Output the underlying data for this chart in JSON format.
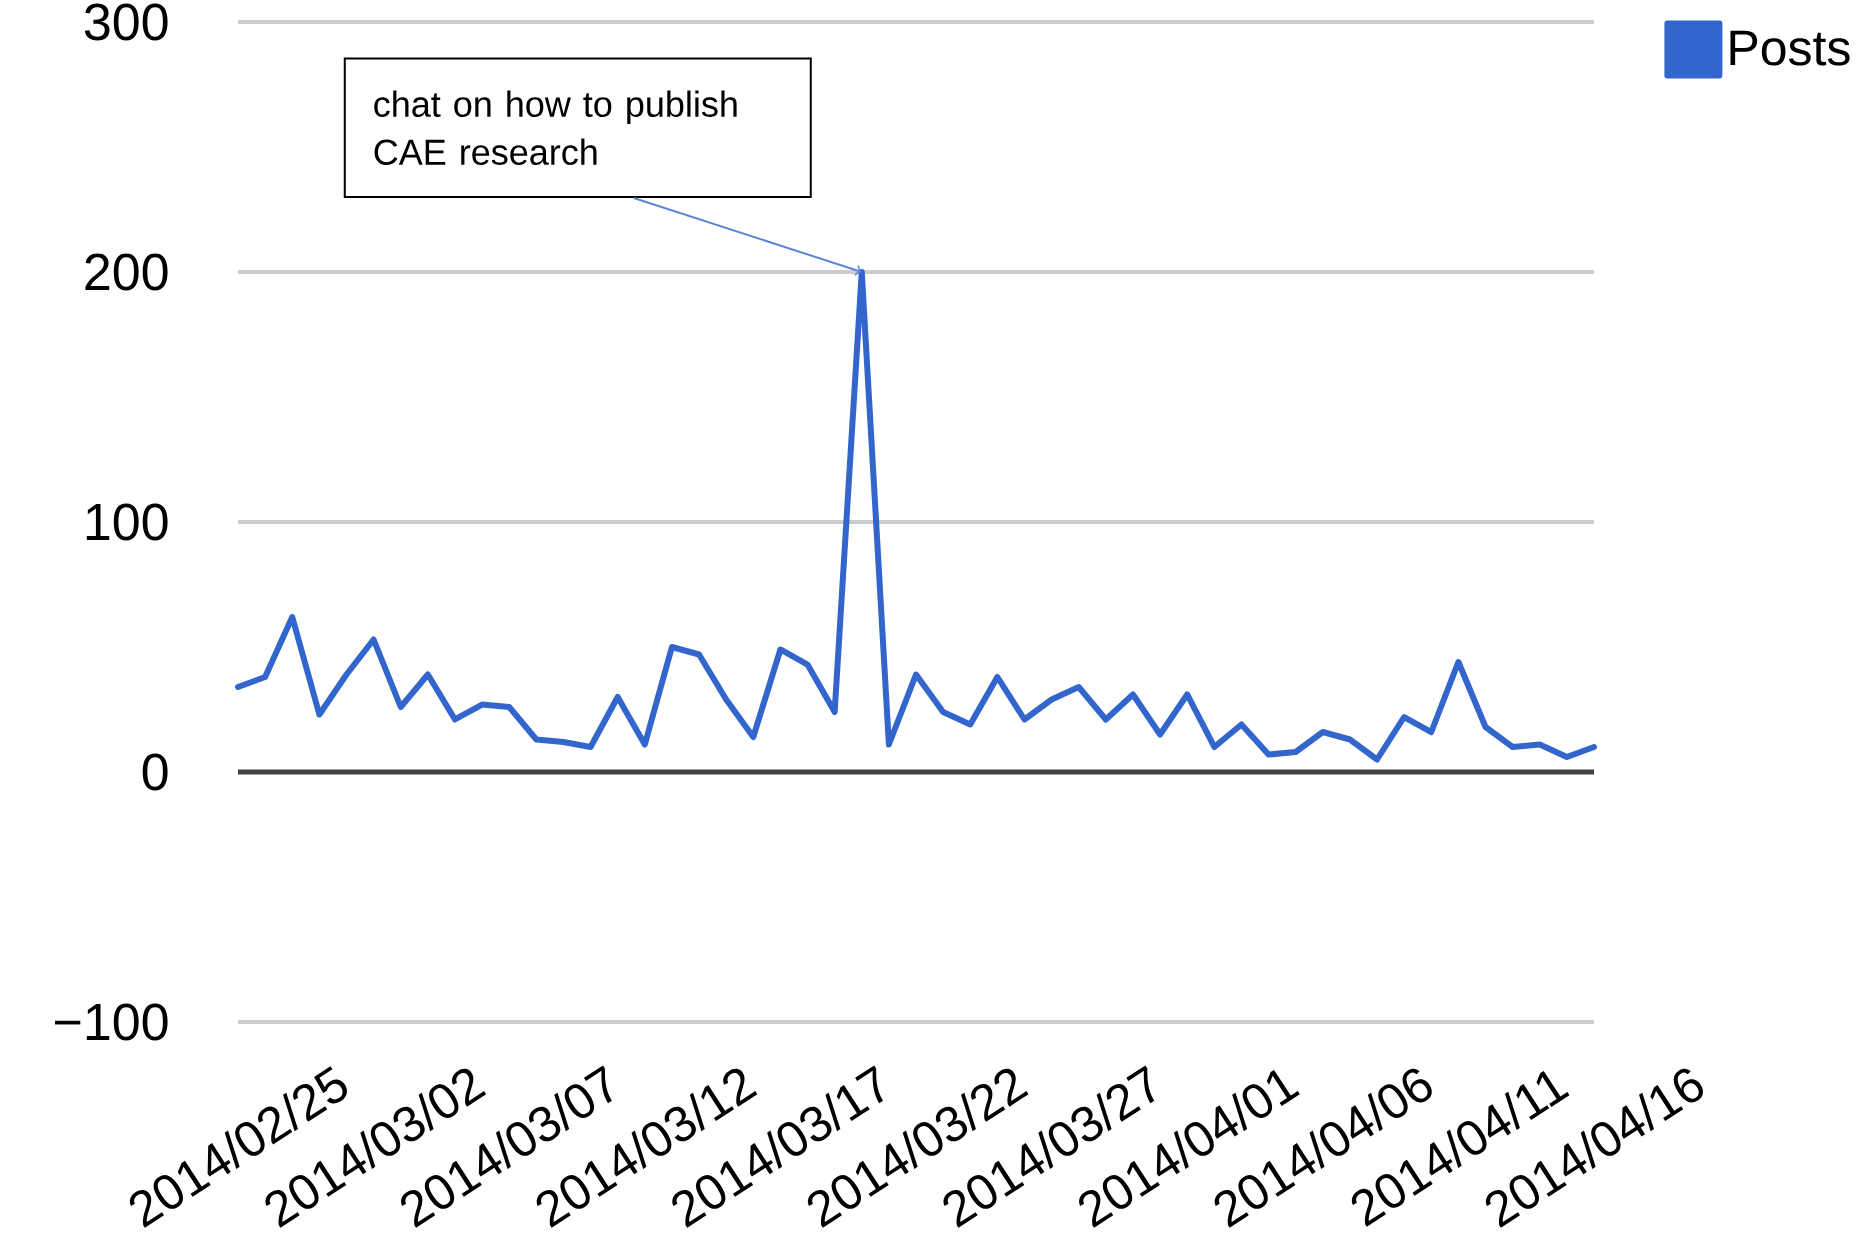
{
  "chart_data": {
    "type": "line",
    "x": [
      "2014-02-25",
      "2014-02-26",
      "2014-02-27",
      "2014-02-28",
      "2014-03-01",
      "2014-03-02",
      "2014-03-03",
      "2014-03-04",
      "2014-03-05",
      "2014-03-06",
      "2014-03-07",
      "2014-03-08",
      "2014-03-09",
      "2014-03-10",
      "2014-03-11",
      "2014-03-12",
      "2014-03-13",
      "2014-03-14",
      "2014-03-15",
      "2014-03-16",
      "2014-03-17",
      "2014-03-18",
      "2014-03-19",
      "2014-03-20",
      "2014-03-21",
      "2014-03-22",
      "2014-03-23",
      "2014-03-24",
      "2014-03-25",
      "2014-03-26",
      "2014-03-27",
      "2014-03-28",
      "2014-03-29",
      "2014-03-30",
      "2014-03-31",
      "2014-04-01",
      "2014-04-02",
      "2014-04-03",
      "2014-04-04",
      "2014-04-05",
      "2014-04-06",
      "2014-04-07",
      "2014-04-08",
      "2014-04-09",
      "2014-04-10",
      "2014-04-11",
      "2014-04-12",
      "2014-04-13",
      "2014-04-14",
      "2014-04-15",
      "2014-04-16"
    ],
    "series": [
      {
        "name": "Posts",
        "color": "#3366cc",
        "values": [
          34,
          38,
          62,
          23,
          39,
          53,
          26,
          39,
          21,
          27,
          26,
          13,
          12,
          10,
          30,
          11,
          50,
          47,
          29,
          14,
          49,
          43,
          24,
          200,
          11,
          39,
          24,
          19,
          38,
          21,
          29,
          34,
          21,
          31,
          15,
          31,
          10,
          19,
          7,
          8,
          16,
          13,
          5,
          22,
          16,
          44,
          18,
          10,
          11,
          6,
          10
        ]
      }
    ],
    "xlim": [
      "2014-02-25",
      "2014-04-16"
    ],
    "xticks": [
      {
        "value": "2014-02-25",
        "label": "2014/02/25"
      },
      {
        "value": "2014-03-02",
        "label": "2014/03/02"
      },
      {
        "value": "2014-03-07",
        "label": "2014/03/07"
      },
      {
        "value": "2014-03-12",
        "label": "2014/03/12"
      },
      {
        "value": "2014-03-17",
        "label": "2014/03/17"
      },
      {
        "value": "2014-03-22",
        "label": "2014/03/22"
      },
      {
        "value": "2014-03-27",
        "label": "2014/03/27"
      },
      {
        "value": "2014-04-01",
        "label": "2014/04/01"
      },
      {
        "value": "2014-04-06",
        "label": "2014/04/06"
      },
      {
        "value": "2014-04-11",
        "label": "2014/04/11"
      },
      {
        "value": "2014-04-16",
        "label": "2014/04/16"
      }
    ],
    "ylim": [
      -100,
      300
    ],
    "yticks": [
      {
        "value": -100,
        "label": "−100"
      },
      0,
      100,
      200,
      300
    ],
    "grid": "y",
    "legend": "top right",
    "line_style": "solid",
    "annotations": [
      {
        "text": "chat on how to publish CAE research",
        "x": "2014-03-20",
        "y": 200
      }
    ]
  }
}
